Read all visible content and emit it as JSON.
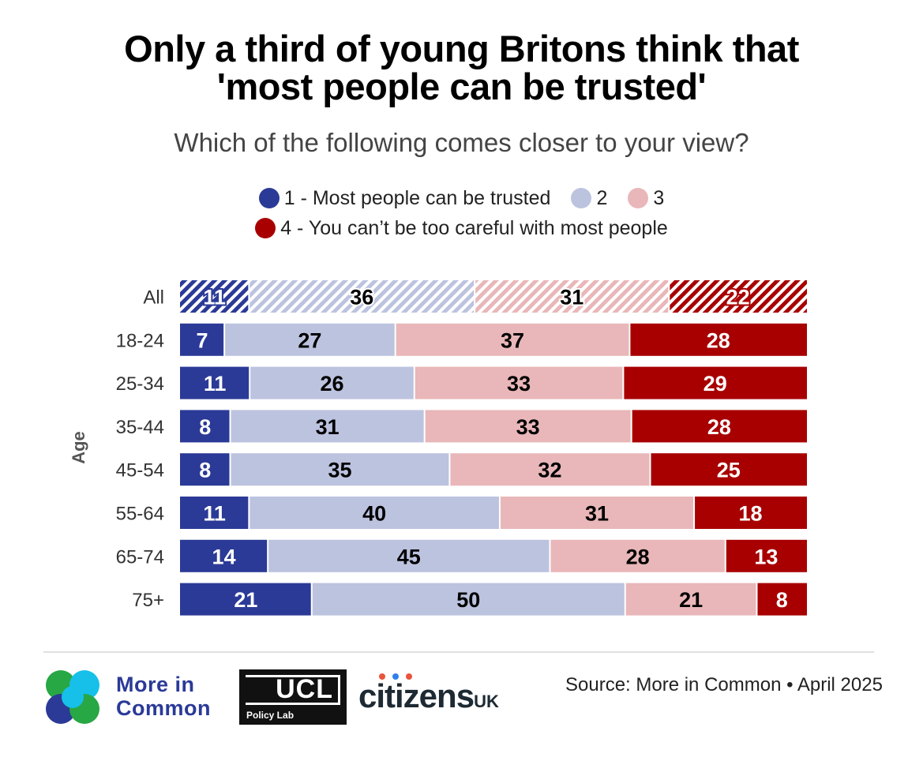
{
  "title_line1": "Only a third of young Britons think that",
  "title_line2": "'most people can be trusted'",
  "subtitle": "Which of the following comes closer to your view?",
  "legend": [
    {
      "label": "1 - Most people can be trusted",
      "color": "#2b3a97"
    },
    {
      "label": "2",
      "color": "#bcc3df"
    },
    {
      "label": "3",
      "color": "#e9b7b9"
    },
    {
      "label": "4 - You can’t be too careful with most people",
      "color": "#a80000"
    }
  ],
  "chart_data": {
    "type": "bar",
    "orientation": "horizontal-stacked",
    "title": "Only a third of young Britons think that 'most people can be trusted'",
    "subtitle": "Which of the following comes closer to your view?",
    "ylabel": "Age",
    "xlim": [
      0,
      100
    ],
    "categories": [
      "All",
      "18-24",
      "25-34",
      "35-44",
      "45-54",
      "55-64",
      "65-74",
      "75+"
    ],
    "hatched_categories": [
      "All"
    ],
    "series": [
      {
        "name": "1 - Most people can be trusted",
        "color": "#2b3a97",
        "label_color": "#ffffff",
        "values": [
          11,
          7,
          11,
          8,
          8,
          11,
          14,
          21
        ]
      },
      {
        "name": "2",
        "color": "#bcc3df",
        "label_color": "#000000",
        "values": [
          36,
          27,
          26,
          31,
          35,
          40,
          45,
          50
        ]
      },
      {
        "name": "3",
        "color": "#e9b7b9",
        "label_color": "#000000",
        "values": [
          31,
          37,
          33,
          33,
          32,
          31,
          28,
          21
        ]
      },
      {
        "name": "4 - You can’t be too careful with most people",
        "color": "#a80000",
        "label_color": "#ffffff",
        "values": [
          22,
          28,
          29,
          28,
          25,
          18,
          13,
          8
        ]
      }
    ]
  },
  "logos": {
    "mic_line1": "More in",
    "mic_line2": "Common",
    "ucl": "UCL",
    "ucl_sub": "Policy Lab",
    "citizens": "citizens",
    "citizens_uk": "UK"
  },
  "source": "Source: More in Common • April 2025"
}
